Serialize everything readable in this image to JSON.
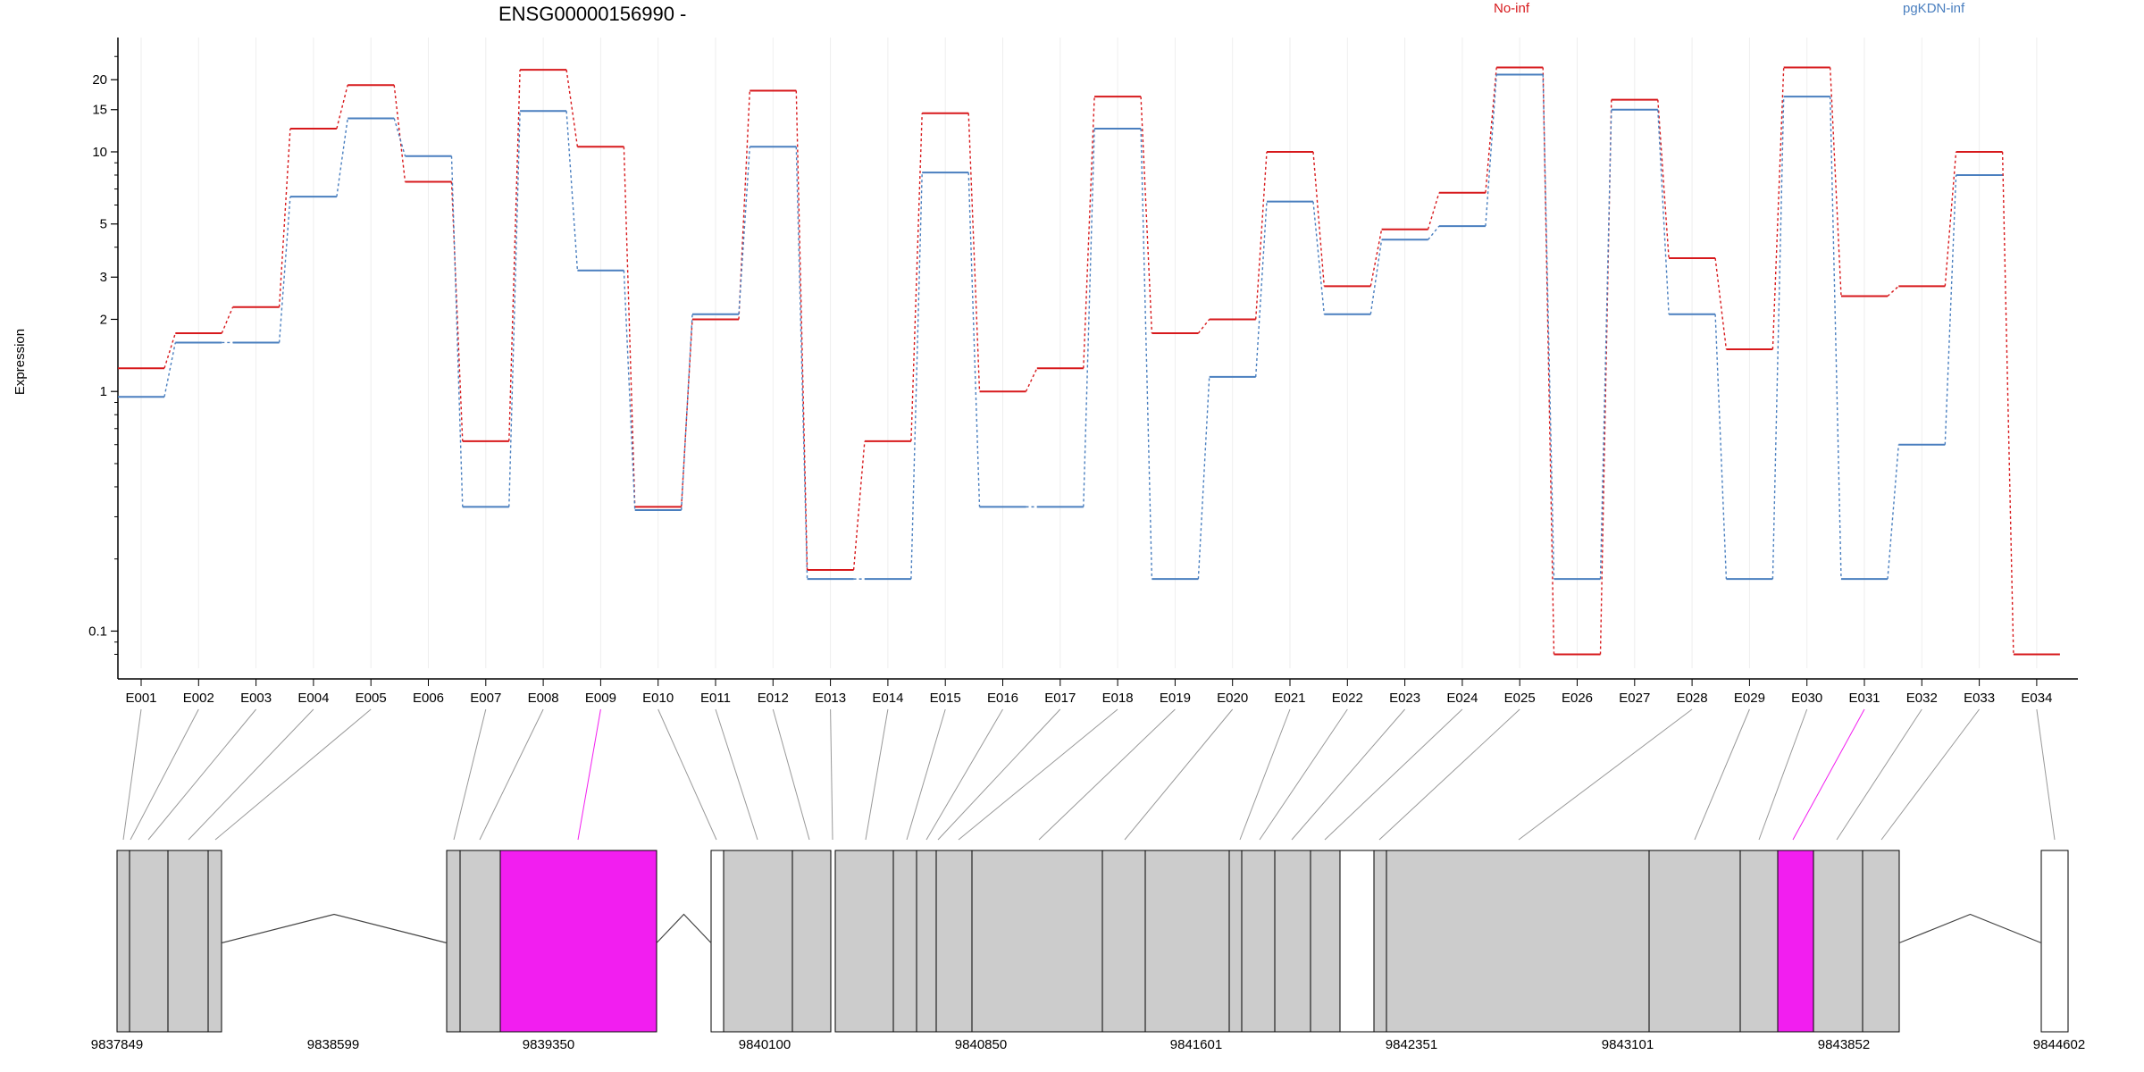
{
  "chart_data": {
    "type": "line",
    "title": "ENSG00000156990 -",
    "ylabel": "Expression",
    "yscale": "log",
    "ylim": [
      0.07,
      30
    ],
    "yticks": [
      0.1,
      1,
      2,
      3,
      5,
      10,
      15,
      20
    ],
    "yticklabels": [
      "0.1",
      "1",
      "2",
      "3",
      "5",
      "10",
      "15",
      "20"
    ],
    "legend_position": "top-right",
    "grid": "vertical-light",
    "categories": [
      "E001",
      "E002",
      "E003",
      "E004",
      "E005",
      "E006",
      "E007",
      "E008",
      "E009",
      "E010",
      "E011",
      "E012",
      "E013",
      "E014",
      "E015",
      "E016",
      "E017",
      "E018",
      "E019",
      "E020",
      "E021",
      "E022",
      "E023",
      "E024",
      "E025",
      "E026",
      "E027",
      "E028",
      "E029",
      "E030",
      "E031",
      "E032",
      "E033",
      "E034"
    ],
    "series": [
      {
        "name": "No-inf",
        "color": "#d7191c",
        "values": [
          1.25,
          1.75,
          2.25,
          12.5,
          19.0,
          7.5,
          0.62,
          22.0,
          10.5,
          0.33,
          2.0,
          18.0,
          0.18,
          0.62,
          14.5,
          1.0,
          1.25,
          17.0,
          1.75,
          2.0,
          10.0,
          2.75,
          4.75,
          6.75,
          22.5,
          0.08,
          16.5,
          3.6,
          1.5,
          22.5,
          2.5,
          2.75,
          10.0,
          0.08
        ]
      },
      {
        "name": "pgKDN-inf",
        "color": "#4a7fbf",
        "values": [
          0.95,
          1.6,
          1.6,
          6.5,
          13.8,
          9.6,
          0.33,
          14.8,
          3.2,
          0.32,
          2.1,
          10.5,
          0.165,
          0.165,
          8.2,
          0.33,
          0.33,
          12.5,
          0.165,
          1.15,
          6.2,
          2.1,
          4.3,
          4.9,
          21.0,
          0.165,
          15.0,
          2.1,
          0.165,
          17.0,
          0.165,
          0.6,
          8.0,
          null
        ]
      }
    ]
  },
  "gene_model": {
    "coordinate_labels": [
      "9837849",
      "9838599",
      "9839350",
      "9840100",
      "9840850",
      "9841601",
      "9842351",
      "9843101",
      "9843852",
      "9844602"
    ],
    "highlight_color": "#f21ef0",
    "exon_color": "#cccccc",
    "highlighted_exons": [
      "E009",
      "E031"
    ]
  }
}
